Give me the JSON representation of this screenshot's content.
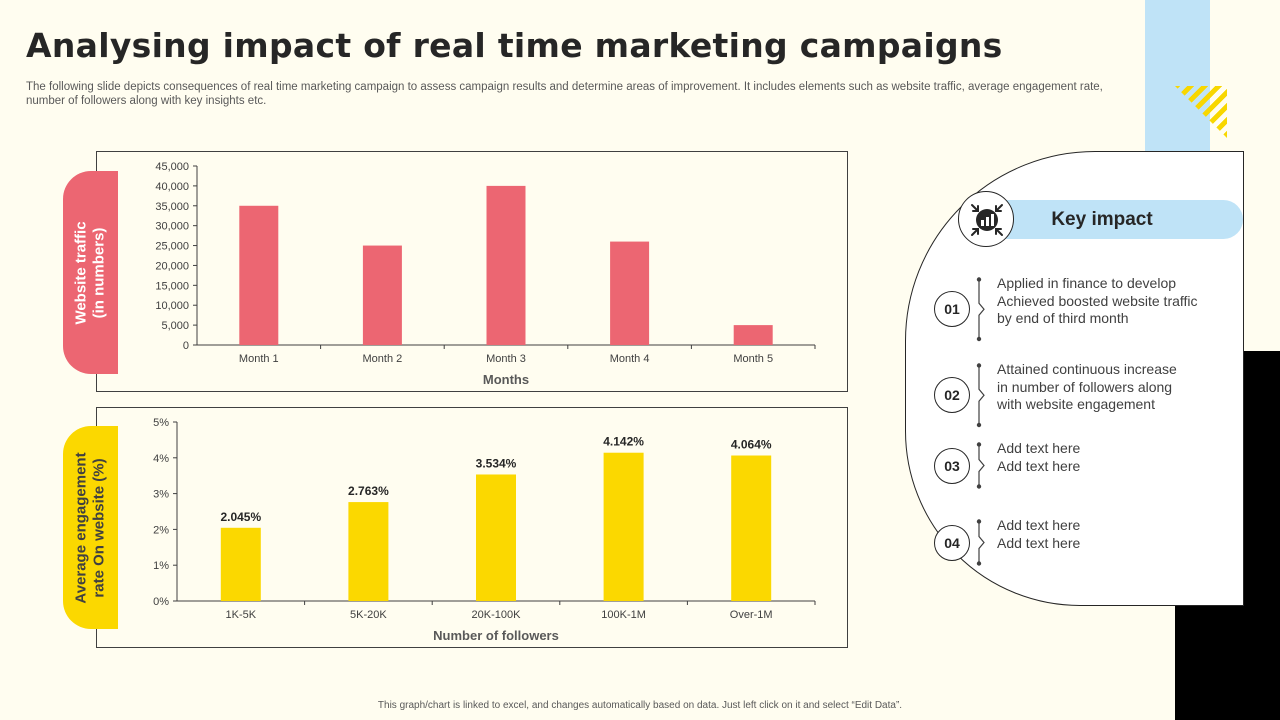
{
  "page": {
    "title": "Analysing impact of real time marketing campaigns",
    "subtitle": "The following slide depicts consequences of real time marketing campaign to assess campaign results and determine areas of improvement. It includes elements such as website traffic, average engagement rate, number of followers along with key insights etc.",
    "footer": "This graph/chart is linked to excel, and changes automatically based on data. Just left click on it and select “Edit Data”."
  },
  "colors": {
    "traffic": "#ec6672",
    "engagement": "#fbd800",
    "accent_blue": "#bfe3f7"
  },
  "chart_data": [
    {
      "type": "bar",
      "ylabel": "Website traffic\n(in numbers)",
      "xlabel": "Months",
      "categories": [
        "Month 1",
        "Month 2",
        "Month 3",
        "Month 4",
        "Month 5"
      ],
      "values": [
        35000,
        25000,
        40000,
        26000,
        5000
      ],
      "ylim": [
        0,
        45000
      ],
      "yticks": [
        "0",
        "5,000",
        "10,000",
        "15,000",
        "20,000",
        "25,000",
        "30,000",
        "35,000",
        "40,000",
        "45,000"
      ],
      "grid": false,
      "color": "#ec6672"
    },
    {
      "type": "bar",
      "ylabel": "Average engagement\nrate On website (%)",
      "xlabel": "Number of followers",
      "categories": [
        "1K-5K",
        "5K-20K",
        "20K-100K",
        "100K-1M",
        "Over-1M"
      ],
      "values": [
        2.045,
        2.763,
        3.534,
        4.142,
        4.064
      ],
      "data_labels": [
        "2.045%",
        "2.763%",
        "3.534%",
        "4.142%",
        "4.064%"
      ],
      "ylim": [
        0,
        5
      ],
      "yticks": [
        "0%",
        "1%",
        "2%",
        "3%",
        "4%",
        "5%"
      ],
      "grid": false,
      "color": "#fbd800"
    }
  ],
  "key_impact": {
    "title": "Key impact",
    "icon": "target-arrows-icon",
    "items": [
      {
        "num": "01",
        "text": "Applied in finance to develop\nAchieved boosted website traffic\nby end of third month"
      },
      {
        "num": "02",
        "text": "Attained continuous increase\nin number of followers along\nwith website engagement"
      },
      {
        "num": "03",
        "text": "Add text here\nAdd text here"
      },
      {
        "num": "04",
        "text": "Add text here\nAdd text here"
      }
    ]
  }
}
